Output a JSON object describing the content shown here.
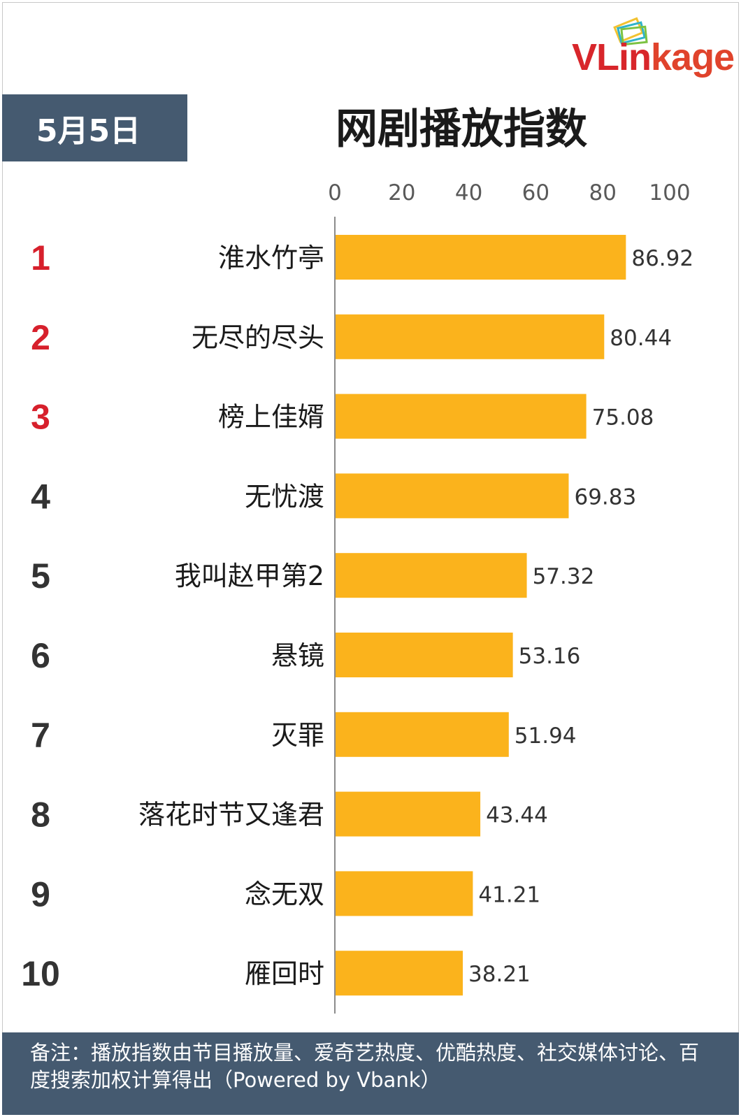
{
  "brand": {
    "logo_text": "VLinkage"
  },
  "header": {
    "date": "5月5日",
    "title": "网剧播放指数"
  },
  "colors": {
    "bar": "#fbb31c",
    "top_rank": "#d7202c",
    "rank": "#333333",
    "header_bg": "#455a70"
  },
  "chart_data": {
    "type": "bar",
    "orientation": "horizontal",
    "ranks": [
      "1",
      "2",
      "3",
      "4",
      "5",
      "6",
      "7",
      "8",
      "9",
      "10"
    ],
    "categories": [
      "淮水竹亭",
      "无尽的尽头",
      "榜上佳婿",
      "无忧渡",
      "我叫赵甲第2",
      "悬镜",
      "灭罪",
      "落花时节又逢君",
      "念无双",
      "雁回时"
    ],
    "values": [
      86.92,
      80.44,
      75.08,
      69.83,
      57.32,
      53.16,
      51.94,
      43.44,
      41.21,
      38.21
    ],
    "value_labels": [
      "86.92",
      "80.44",
      "75.08",
      "69.83",
      "57.32",
      "53.16",
      "51.94",
      "43.44",
      "41.21",
      "38.21"
    ],
    "x_ticks": [
      "0",
      "20",
      "40",
      "60",
      "80",
      "100"
    ],
    "xlim": [
      0,
      100
    ],
    "axis_position": "top",
    "grid": false,
    "legend": "none"
  },
  "footer": {
    "note": "备注：播放指数由节目播放量、爱奇艺热度、优酷热度、社交媒体讨论、百度搜索加权计算得出（Powered by Vbank）"
  }
}
